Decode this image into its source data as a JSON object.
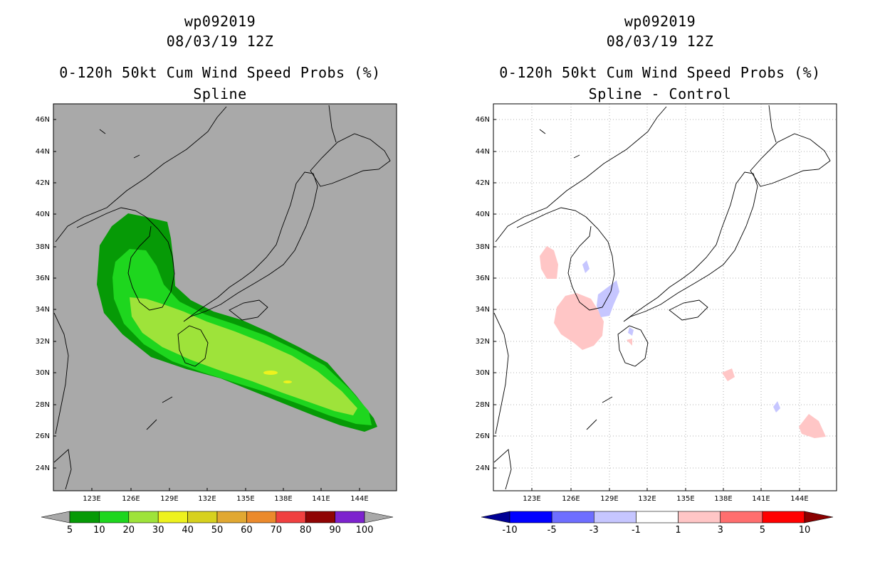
{
  "panels": [
    {
      "storm_id": "wp092019",
      "datetime": "08/03/19 12Z",
      "product": "0-120h 50kt Cum Wind Speed Probs (%)",
      "subtitle": "Spline",
      "background": "#a9a9a9",
      "lat_labels": [
        "46N",
        "44N",
        "42N",
        "40N",
        "38N",
        "36N",
        "34N",
        "32N",
        "30N",
        "28N",
        "26N",
        "24N"
      ],
      "lon_labels": [
        "123E",
        "126E",
        "129E",
        "132E",
        "135E",
        "138E",
        "141E",
        "144E"
      ],
      "colorbar": {
        "labels": [
          "5",
          "10",
          "20",
          "30",
          "40",
          "50",
          "60",
          "70",
          "80",
          "90",
          "100"
        ],
        "colors": [
          "#069a06",
          "#1ed61e",
          "#9ee33a",
          "#eef21e",
          "#d7d11f",
          "#e1a832",
          "#eb8a2c",
          "#f04040",
          "#8f0404",
          "#7d23ce"
        ],
        "end_color": "#a9a9a9"
      }
    },
    {
      "storm_id": "wp092019",
      "datetime": "08/03/19 12Z",
      "product": "0-120h 50kt Cum Wind Speed Probs (%)",
      "subtitle": "Spline - Control",
      "background": "#ffffff",
      "lat_labels": [
        "46N",
        "44N",
        "42N",
        "40N",
        "38N",
        "36N",
        "34N",
        "32N",
        "30N",
        "28N",
        "26N",
        "24N"
      ],
      "lon_labels": [
        "123E",
        "126E",
        "129E",
        "132E",
        "135E",
        "138E",
        "141E",
        "144E"
      ],
      "colorbar": {
        "labels": [
          "-10",
          "-5",
          "-3",
          "-1",
          "1",
          "3",
          "5",
          "10"
        ],
        "colors": [
          "#0000ff",
          "#6e6eff",
          "#c6c6ff",
          "#ffffff",
          "#ffc6c6",
          "#ff6e6e",
          "#ff0000"
        ],
        "start_color": "#000094",
        "end_color": "#8b0000"
      }
    }
  ]
}
